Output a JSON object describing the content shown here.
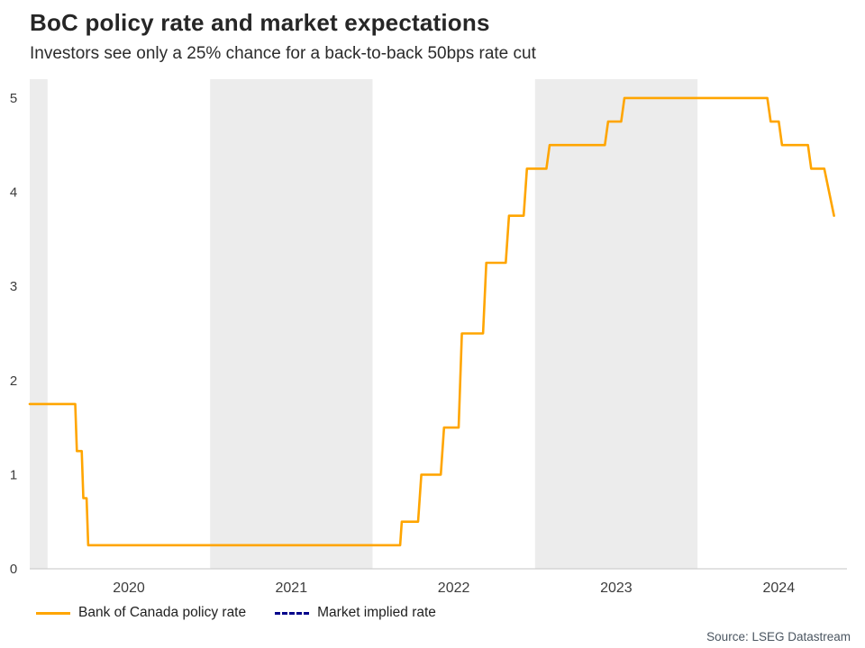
{
  "header": {
    "title": "BoC policy rate and market expectations",
    "subtitle": "Investors see only a 25% chance for a back-to-back 50bps rate cut"
  },
  "source": "Source: LSEG Datastream",
  "legend": [
    {
      "label": "Bank of Canada policy rate",
      "color": "#FFA500",
      "style": "solid"
    },
    {
      "label": "Market implied rate",
      "color": "#00008B",
      "style": "dashed"
    }
  ],
  "chart_data": {
    "type": "line",
    "title": "BoC policy rate and market expectations",
    "subtitle": "Investors see only a 25% chance for a back-to-back 50bps rate cut",
    "xlabel": "",
    "ylabel": "",
    "x_domain": [
      2019.89,
      2024.92
    ],
    "y_domain": [
      0,
      5.2
    ],
    "y_ticks": [
      0,
      1,
      2,
      3,
      4,
      5
    ],
    "x_ticks": [
      {
        "pos": 2020.5,
        "label": "2020"
      },
      {
        "pos": 2021.5,
        "label": "2021"
      },
      {
        "pos": 2022.5,
        "label": "2022"
      },
      {
        "pos": 2023.5,
        "label": "2023"
      },
      {
        "pos": 2024.5,
        "label": "2024"
      }
    ],
    "bands": [
      [
        2019.89,
        2020.0
      ],
      [
        2021.0,
        2022.0
      ],
      [
        2023.0,
        2024.0
      ]
    ],
    "band_color": "#ECECEC",
    "axis_color": "#C6C6C6",
    "grid": false,
    "legend_position": "bottom-left",
    "series": [
      {
        "name": "Bank of Canada policy rate",
        "color": "#FFA500",
        "dash": null,
        "points": [
          [
            2019.89,
            1.75
          ],
          [
            2020.17,
            1.75
          ],
          [
            2020.18,
            1.25
          ],
          [
            2020.21,
            1.25
          ],
          [
            2020.22,
            0.75
          ],
          [
            2020.24,
            0.75
          ],
          [
            2020.25,
            0.25
          ],
          [
            2022.17,
            0.25
          ],
          [
            2022.18,
            0.5
          ],
          [
            2022.28,
            0.5
          ],
          [
            2022.3,
            1.0
          ],
          [
            2022.42,
            1.0
          ],
          [
            2022.44,
            1.5
          ],
          [
            2022.53,
            1.5
          ],
          [
            2022.55,
            2.5
          ],
          [
            2022.68,
            2.5
          ],
          [
            2022.7,
            3.25
          ],
          [
            2022.82,
            3.25
          ],
          [
            2022.84,
            3.75
          ],
          [
            2022.93,
            3.75
          ],
          [
            2022.95,
            4.25
          ],
          [
            2023.07,
            4.25
          ],
          [
            2023.09,
            4.5
          ],
          [
            2023.43,
            4.5
          ],
          [
            2023.45,
            4.75
          ],
          [
            2023.53,
            4.75
          ],
          [
            2023.55,
            5.0
          ],
          [
            2024.43,
            5.0
          ],
          [
            2024.45,
            4.75
          ],
          [
            2024.5,
            4.75
          ],
          [
            2024.52,
            4.5
          ],
          [
            2024.68,
            4.5
          ],
          [
            2024.7,
            4.25
          ],
          [
            2024.78,
            4.25
          ],
          [
            2024.84,
            3.75
          ]
        ]
      },
      {
        "name": "Market implied rate",
        "color": "#00008B",
        "dash": "7,5",
        "points": []
      }
    ]
  }
}
